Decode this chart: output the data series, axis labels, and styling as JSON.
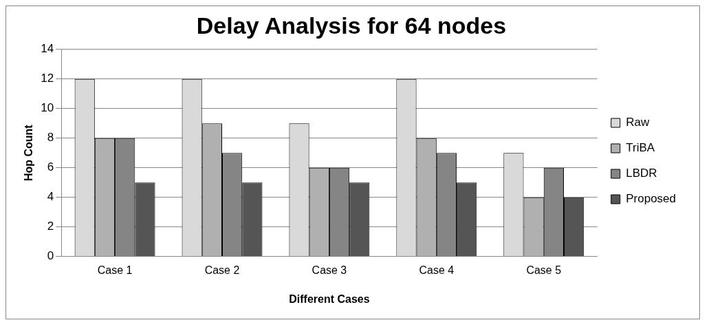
{
  "chart_data": {
    "type": "bar",
    "title": "Delay Analysis for 64 nodes",
    "xlabel": "Different Cases",
    "ylabel": "Hop Count",
    "categories": [
      "Case 1",
      "Case 2",
      "Case 3",
      "Case 4",
      "Case 5"
    ],
    "series": [
      {
        "name": "Raw",
        "color": "#d9d9d9",
        "values": [
          12,
          12,
          9,
          12,
          7
        ]
      },
      {
        "name": "TriBA",
        "color": "#b0b0b0",
        "values": [
          8,
          9,
          6,
          8,
          4
        ]
      },
      {
        "name": "LBDR",
        "color": "#858585",
        "values": [
          8,
          7,
          6,
          7,
          6
        ]
      },
      {
        "name": "Proposed",
        "color": "#555555",
        "values": [
          5,
          5,
          5,
          5,
          4
        ]
      }
    ],
    "ylim": [
      0,
      14
    ],
    "yticks": [
      0,
      2,
      4,
      6,
      8,
      10,
      12,
      14
    ],
    "grid": "y",
    "legend": "right"
  }
}
